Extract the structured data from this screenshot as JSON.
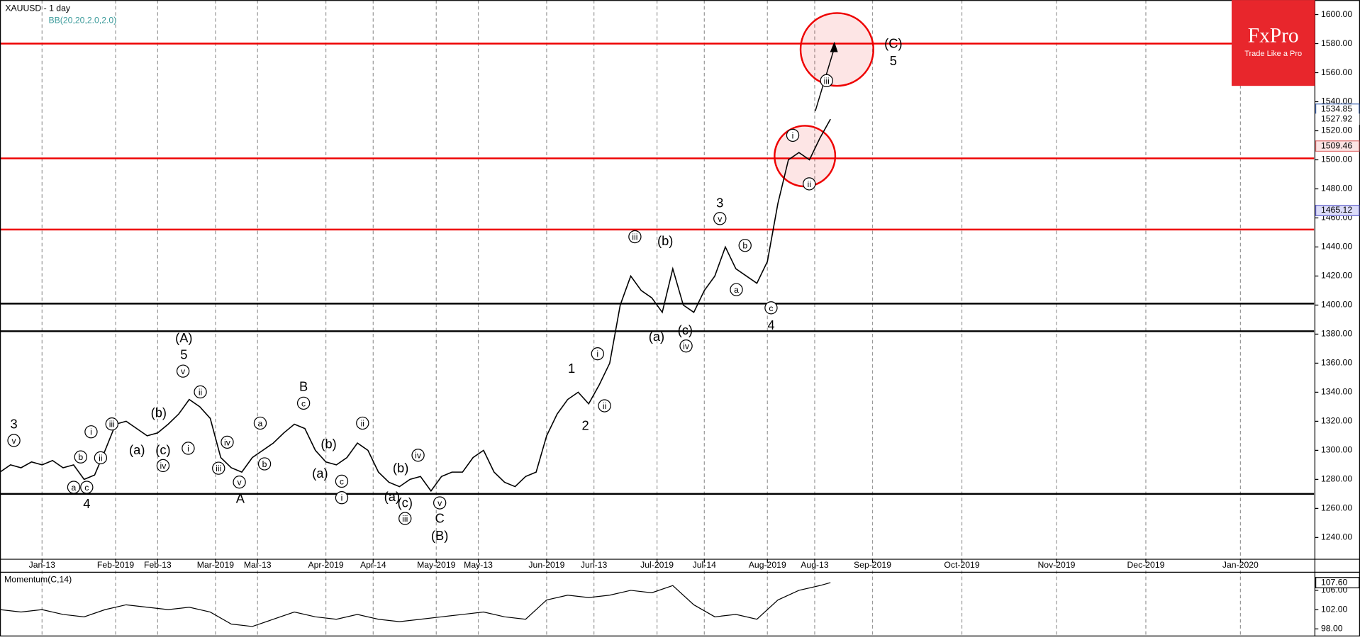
{
  "chart_data": {
    "type": "line",
    "title": "XAUUSD - 1 day",
    "indicator": "BB(20,20,2.0,2.0)",
    "x": [
      0,
      2,
      4,
      6,
      8,
      10,
      12,
      14,
      16,
      18,
      20,
      22,
      24,
      26,
      28,
      30,
      32,
      34,
      36,
      38,
      40,
      42,
      44,
      46,
      48,
      50,
      52,
      54,
      56,
      58,
      60,
      62,
      64,
      66,
      68,
      70,
      72,
      74,
      76,
      78,
      80,
      82,
      84,
      86,
      88,
      90,
      92,
      94,
      96,
      98,
      100,
      102,
      104,
      106,
      108,
      110,
      112,
      114,
      116,
      118,
      120,
      122,
      124,
      126,
      128,
      130,
      132,
      134,
      136,
      138,
      140,
      142,
      144,
      146,
      148,
      150,
      152,
      154,
      156,
      158
    ],
    "series": [
      {
        "name": "XAUUSD",
        "color": "#000000",
        "values": [
          1285,
          1290,
          1288,
          1292,
          1290,
          1293,
          1288,
          1290,
          1280,
          1283,
          1300,
          1318,
          1320,
          1315,
          1310,
          1312,
          1318,
          1325,
          1335,
          1330,
          1322,
          1295,
          1288,
          1285,
          1295,
          1300,
          1305,
          1312,
          1318,
          1315,
          1300,
          1292,
          1290,
          1295,
          1305,
          1300,
          1285,
          1278,
          1275,
          1280,
          1282,
          1272,
          1282,
          1285,
          1285,
          1295,
          1300,
          1285,
          1278,
          1275,
          1282,
          1285,
          1310,
          1325,
          1335,
          1340,
          1332,
          1345,
          1360,
          1400,
          1420,
          1410,
          1405,
          1395,
          1425,
          1400,
          1395,
          1410,
          1420,
          1440,
          1425,
          1420,
          1415,
          1430,
          1470,
          1500,
          1505,
          1500,
          1515,
          1528
        ]
      }
    ],
    "xlim": [
      0,
      250
    ],
    "xticks": [
      {
        "value": 8,
        "label": "Jan-13"
      },
      {
        "value": 22,
        "label": "Feb-2019"
      },
      {
        "value": 30,
        "label": "Feb-13"
      },
      {
        "value": 41,
        "label": "Mar-2019"
      },
      {
        "value": 49,
        "label": "Mar-13"
      },
      {
        "value": 62,
        "label": "Apr-2019"
      },
      {
        "value": 71,
        "label": "Apr-14"
      },
      {
        "value": 83,
        "label": "May-2019"
      },
      {
        "value": 91,
        "label": "May-13"
      },
      {
        "value": 104,
        "label": "Jun-2019"
      },
      {
        "value": 113,
        "label": "Jun-13"
      },
      {
        "value": 125,
        "label": "Jul-2019"
      },
      {
        "value": 134,
        "label": "Jul-14"
      },
      {
        "value": 146,
        "label": "Aug-2019"
      },
      {
        "value": 155,
        "label": "Aug-13"
      },
      {
        "value": 166,
        "label": "Sep-2019"
      },
      {
        "value": 183,
        "label": "Oct-2019"
      },
      {
        "value": 201,
        "label": "Nov-2019"
      },
      {
        "value": 218,
        "label": "Dec-2019"
      },
      {
        "value": 236,
        "label": "Jan-2020"
      }
    ],
    "ylim": [
      1228,
      1607
    ],
    "yticks": [
      {
        "value": 1240,
        "label": "1240.00"
      },
      {
        "value": 1260,
        "label": "1260.00"
      },
      {
        "value": 1280,
        "label": "1280.00"
      },
      {
        "value": 1300,
        "label": "1300.00"
      },
      {
        "value": 1320,
        "label": "1320.00"
      },
      {
        "value": 1340,
        "label": "1340.00"
      },
      {
        "value": 1360,
        "label": "1360.00"
      },
      {
        "value": 1380,
        "label": "1380.00"
      },
      {
        "value": 1400,
        "label": "1400.00"
      },
      {
        "value": 1420,
        "label": "1420.00"
      },
      {
        "value": 1440,
        "label": "1440.00"
      },
      {
        "value": 1460,
        "label": "1460.00"
      },
      {
        "value": 1480,
        "label": "1480.00"
      },
      {
        "value": 1500,
        "label": "1500.00"
      },
      {
        "value": 1520,
        "label": "1520.00"
      },
      {
        "value": 1540,
        "label": "1540.00"
      },
      {
        "value": 1560,
        "label": "1560.00"
      },
      {
        "value": 1580,
        "label": "1580.00"
      },
      {
        "value": 1600,
        "label": "1600.00"
      }
    ],
    "grid": true,
    "levels": [
      {
        "value": 1580,
        "color": "#ee0000"
      },
      {
        "value": 1501,
        "color": "#ee0000"
      },
      {
        "value": 1452,
        "color": "#ee0000"
      },
      {
        "value": 1401,
        "color": "#000000"
      },
      {
        "value": 1382,
        "color": "#000000"
      },
      {
        "value": 1270,
        "color": "#000000"
      }
    ],
    "price_labels": [
      1534.85,
      1527.92,
      1509.46,
      1465.12
    ],
    "annotations": [
      "3",
      "v",
      "a",
      "c",
      "4",
      "b",
      "i",
      "ii",
      "iii",
      "(a)",
      "(b)",
      "(c)",
      "iv",
      "i",
      "ii",
      "v",
      "5",
      "(A)",
      "iii",
      "iv",
      "v",
      "A",
      "a",
      "b",
      "c",
      "B",
      "(a)",
      "(b)",
      "c",
      "i",
      "ii",
      "(a)",
      "(c)",
      "iii",
      "(b)",
      "iv",
      "v",
      "C",
      "(B)",
      "1",
      "i",
      "ii",
      "2",
      "iii",
      "(b)",
      "(a)",
      "(c)",
      "iv",
      "3",
      "v",
      "b",
      "a",
      "c",
      "4",
      "i",
      "ii",
      "iii",
      "(C)",
      "5"
    ],
    "momentum": {
      "title": "Momentum(C,14)",
      "x": [
        0,
        4,
        8,
        12,
        16,
        20,
        24,
        28,
        32,
        36,
        40,
        44,
        48,
        52,
        56,
        60,
        64,
        68,
        72,
        76,
        80,
        84,
        88,
        92,
        96,
        100,
        104,
        108,
        112,
        116,
        120,
        124,
        128,
        132,
        136,
        140,
        144,
        148,
        152,
        156,
        158
      ],
      "values": [
        102,
        101.5,
        102,
        101,
        100.5,
        102,
        103,
        102.5,
        102,
        102.5,
        101.5,
        99,
        98.5,
        100,
        101.5,
        100.5,
        100,
        101,
        100,
        99.5,
        100,
        100.5,
        101,
        101.5,
        100.5,
        100,
        104,
        105,
        104.5,
        105,
        106,
        105.5,
        107,
        103,
        100.5,
        101,
        100,
        104,
        106,
        107,
        107.6
      ],
      "ylim": [
        96.8,
        109.4
      ],
      "yticks": [
        {
          "value": 98,
          "label": "98.00"
        },
        {
          "value": 102,
          "label": "102.00"
        },
        {
          "value": 106,
          "label": "106.00"
        }
      ],
      "last": {
        "value": 107.6,
        "label": "107.60"
      }
    },
    "logo": {
      "name": "FxPro",
      "tagline": "Trade Like a Pro"
    }
  }
}
